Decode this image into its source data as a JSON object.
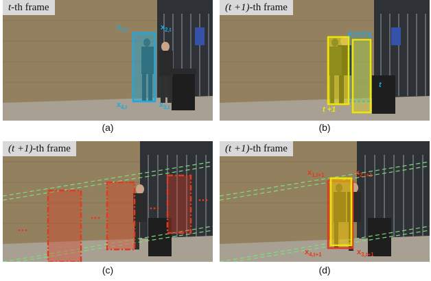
{
  "panels": [
    {
      "id": "a",
      "frame_title": {
        "var": "t",
        "rest": "-th frame"
      },
      "caption": "(a)",
      "points": [
        {
          "name": "x",
          "sub": "1,t"
        },
        {
          "name": "x",
          "sub": "2,t"
        },
        {
          "name": "x",
          "sub": "4,t"
        },
        {
          "name": "x",
          "sub": "3,t"
        }
      ]
    },
    {
      "id": "b",
      "frame_title": {
        "var": "(t +1)",
        "rest": "-th frame"
      },
      "caption": "(b)",
      "box_labels": {
        "previous": "t",
        "current": "t +1"
      }
    },
    {
      "id": "c",
      "frame_title": {
        "var": "(t +1)",
        "rest": "-th frame"
      },
      "caption": "(c)"
    },
    {
      "id": "d",
      "frame_title": {
        "var": "(t +1)",
        "rest": "-th frame"
      },
      "caption": "(d)",
      "points": [
        {
          "name": "x",
          "sub": "1,t+1"
        },
        {
          "name": "x",
          "sub": "2,t+1"
        },
        {
          "name": "x",
          "sub": "4,t+1"
        },
        {
          "name": "x",
          "sub": "3,t+1"
        }
      ]
    }
  ],
  "colors": {
    "previous_box": "#1fa8e0",
    "current_box": "#f2e600",
    "candidate_box": "#e23a1e",
    "guide_lines": "#7de07d",
    "wall": "#8b7355",
    "sidewalk": "#a39a8c",
    "shop_window": "#2c2f33"
  }
}
